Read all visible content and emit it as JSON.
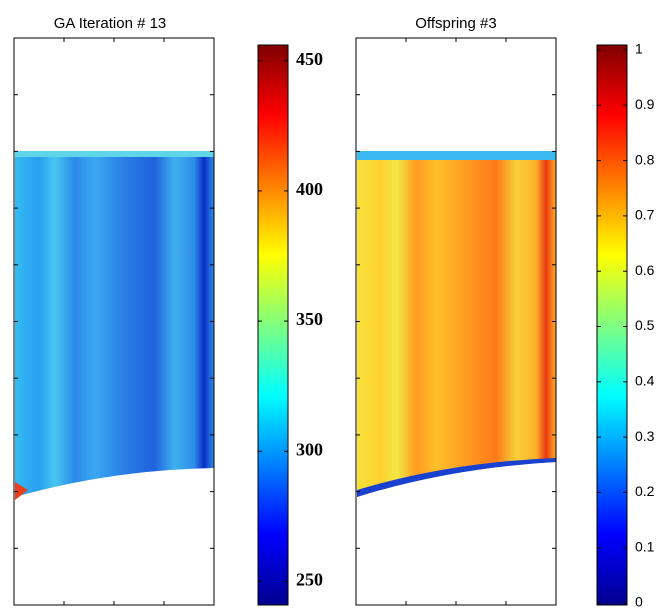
{
  "chart_data": [
    {
      "type": "heatmap",
      "title": "GA Iteration # 13",
      "colormap": "jet",
      "ylim": [
        241,
        456
      ],
      "yticks": [
        250,
        300,
        350,
        400,
        450
      ]
    },
    {
      "type": "heatmap",
      "title": "Offspring #3",
      "colormap": "jet",
      "ylim": [
        0,
        1
      ],
      "yticks": [
        0,
        0.1,
        0.2,
        0.3,
        0.4,
        0.5,
        0.6,
        0.7,
        0.8,
        0.9,
        1
      ]
    }
  ]
}
